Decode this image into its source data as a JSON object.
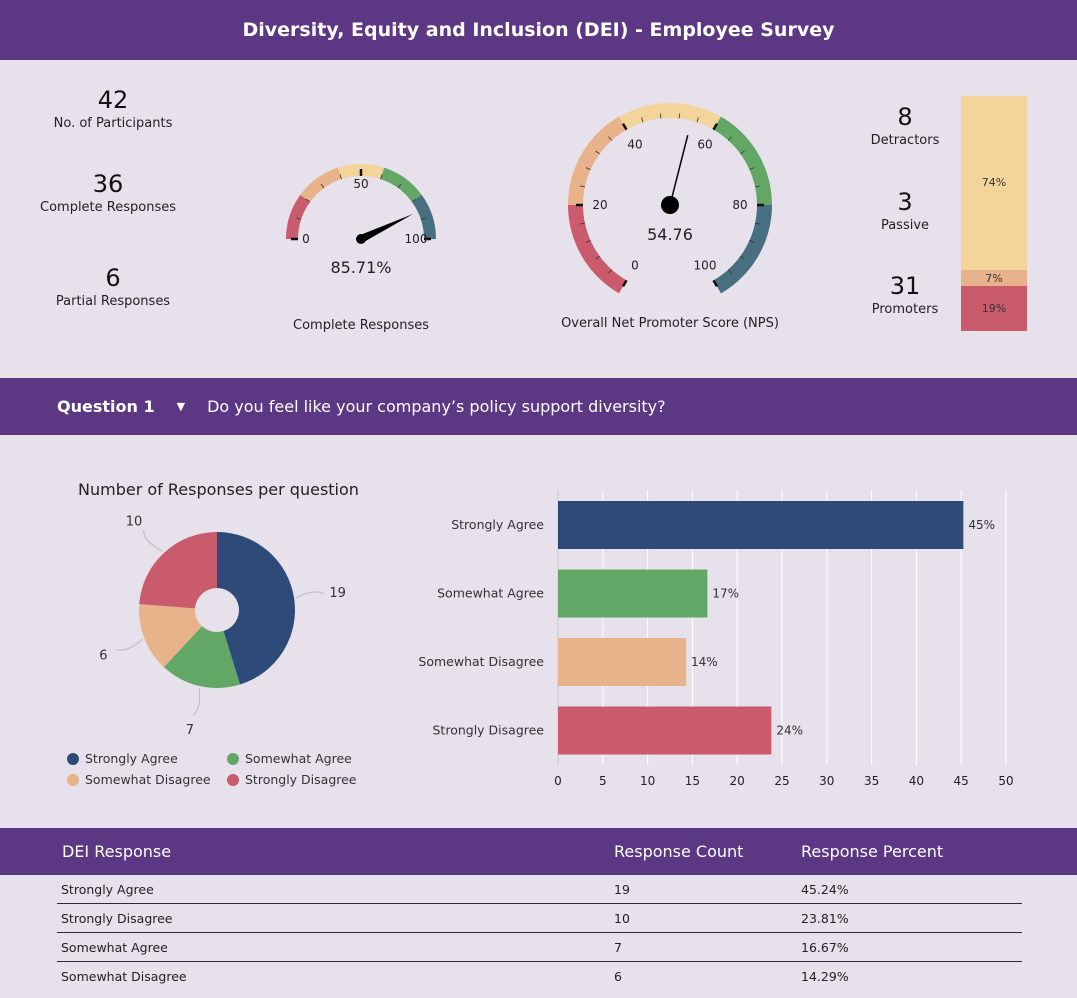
{
  "header": {
    "title": "Diversity, Equity and Inclusion (DEI) - Employee Survey"
  },
  "kpis": {
    "participants": {
      "value": "42",
      "label": "No. of Participants"
    },
    "complete": {
      "value": "36",
      "label": "Complete Responses"
    },
    "partial": {
      "value": "6",
      "label": "Partial Responses"
    }
  },
  "gauge_complete": {
    "value": 85.71,
    "display": "85.71%",
    "caption": "Complete Responses",
    "ticks": [
      "0",
      "50",
      "100"
    ],
    "min": 0,
    "max": 100
  },
  "gauge_nps": {
    "value": 54.76,
    "display": "54.76",
    "caption": "Overall Net Promoter Score (NPS)",
    "ticks": [
      "0",
      "20",
      "40",
      "60",
      "80",
      "100"
    ],
    "min": 0,
    "max": 100
  },
  "gauge_bands": [
    "#c95b6c",
    "#e8b28a",
    "#f3d59b",
    "#63a766",
    "#486f80"
  ],
  "nps_counts": {
    "detractors": {
      "value": "8",
      "label": "Detractors"
    },
    "passive": {
      "value": "3",
      "label": "Passive"
    },
    "promoters": {
      "value": "31",
      "label": "Promoters"
    }
  },
  "nps_stack": [
    {
      "label": "74%",
      "value": 74,
      "color": "#f3d59b"
    },
    {
      "label": "7%",
      "value": 7,
      "color": "#e8b28a"
    },
    {
      "label": "19%",
      "value": 19,
      "color": "#c95b6c"
    }
  ],
  "question": {
    "label": "Question 1",
    "text": "Do you feel like your company’s policy support diversity?",
    "caret_icon": "caret-down-icon"
  },
  "chart_data": [
    {
      "type": "pie",
      "title": "Number of Responses per question",
      "donut": true,
      "categories": [
        "Strongly Agree",
        "Somewhat Agree",
        "Somewhat Disagree",
        "Strongly Disagree"
      ],
      "values": [
        19,
        7,
        6,
        10
      ],
      "labels": [
        "19",
        "7",
        "6",
        "10"
      ],
      "colors": [
        "#2e4a78",
        "#63a766",
        "#e8b28a",
        "#c95b6c"
      ],
      "legend": "bottom"
    },
    {
      "type": "bar",
      "orientation": "horizontal",
      "categories": [
        "Strongly Agree",
        "Somewhat Agree",
        "Somewhat Disagree",
        "Strongly Disagree"
      ],
      "values": [
        45.24,
        16.67,
        14.29,
        23.81
      ],
      "data_labels": [
        "45%",
        "17%",
        "14%",
        "24%"
      ],
      "colors": [
        "#2e4a78",
        "#63a766",
        "#e8b28a",
        "#c95b6c"
      ],
      "xlim": [
        0,
        50
      ],
      "xticks": [
        "0",
        "5",
        "10",
        "15",
        "20",
        "25",
        "30",
        "35",
        "40",
        "45",
        "50"
      ],
      "grid": true
    }
  ],
  "table": {
    "headers": [
      "DEI Response",
      "Response Count",
      "Response Percent"
    ],
    "rows": [
      [
        "Strongly Agree",
        "19",
        "45.24%"
      ],
      [
        "Strongly Disagree",
        "10",
        "23.81%"
      ],
      [
        "Somewhat Agree",
        "7",
        "16.67%"
      ],
      [
        "Somewhat Disagree",
        "6",
        "14.29%"
      ]
    ]
  }
}
